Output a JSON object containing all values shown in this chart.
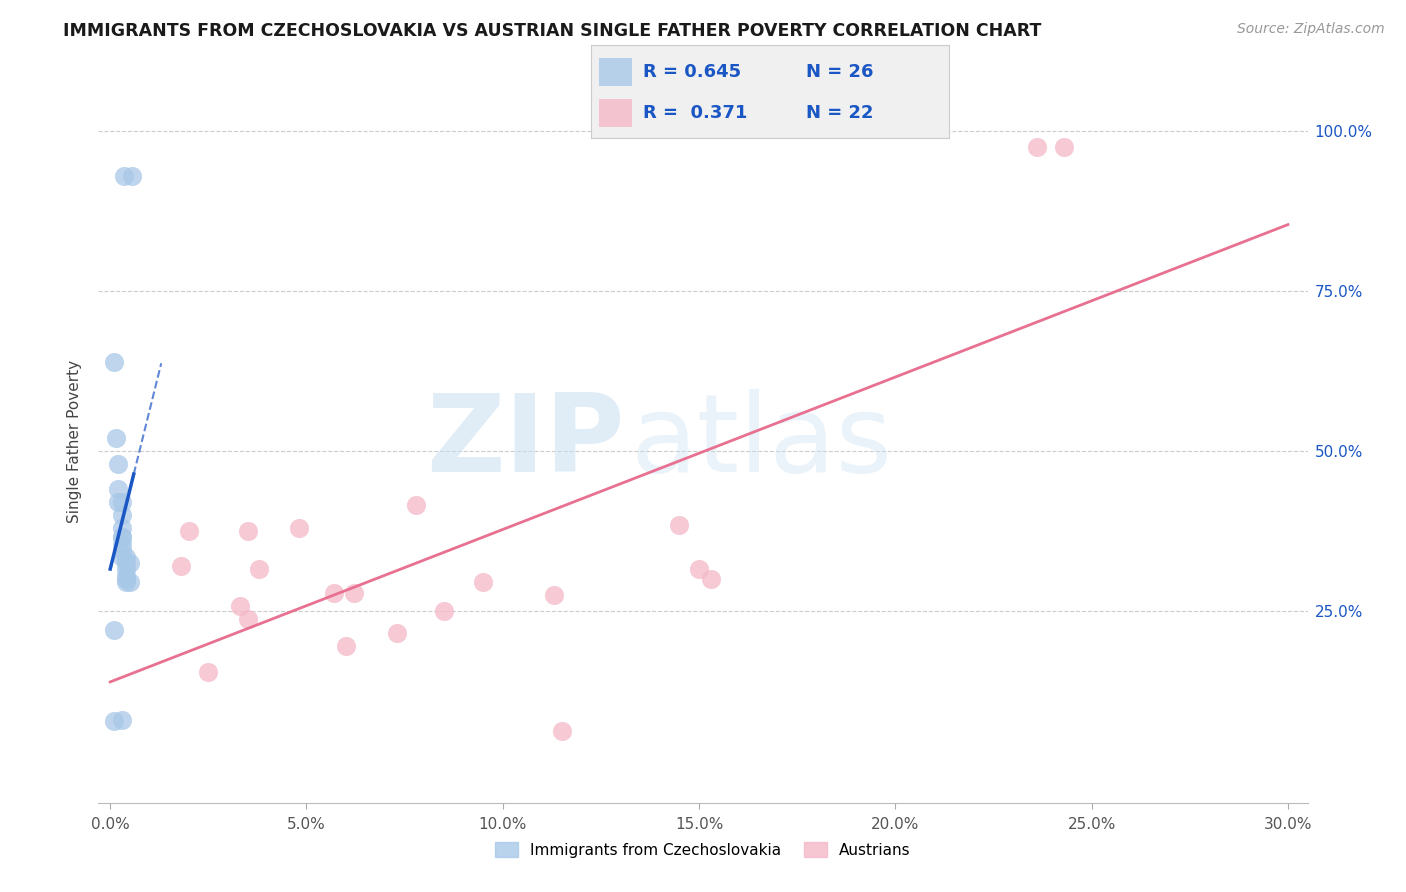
{
  "title": "IMMIGRANTS FROM CZECHOSLOVAKIA VS AUSTRIAN SINGLE FATHER POVERTY CORRELATION CHART",
  "source": "Source: ZipAtlas.com",
  "ylabel": "Single Father Poverty",
  "x_tick_labels": [
    "0.0%",
    "5.0%",
    "10.0%",
    "15.0%",
    "20.0%",
    "25.0%",
    "30.0%"
  ],
  "x_ticks": [
    0.0,
    0.05,
    0.1,
    0.15,
    0.2,
    0.25,
    0.3
  ],
  "y_tick_labels": [
    "25.0%",
    "50.0%",
    "75.0%",
    "100.0%"
  ],
  "y_ticks": [
    0.25,
    0.5,
    0.75,
    1.0
  ],
  "blue_color": "#a8c8e8",
  "pink_color": "#f4b8c8",
  "blue_line_color": "#1a56c4",
  "pink_line_color": "#e87090",
  "blue_scatter_x": [
    0.0035,
    0.0055,
    0.001,
    0.0015,
    0.002,
    0.002,
    0.002,
    0.003,
    0.003,
    0.003,
    0.003,
    0.003,
    0.003,
    0.003,
    0.003,
    0.004,
    0.004,
    0.004,
    0.004,
    0.004,
    0.004,
    0.005,
    0.005,
    0.001,
    0.003,
    0.001
  ],
  "blue_scatter_y": [
    0.93,
    0.93,
    0.64,
    0.52,
    0.48,
    0.44,
    0.42,
    0.42,
    0.4,
    0.38,
    0.365,
    0.365,
    0.355,
    0.345,
    0.335,
    0.335,
    0.325,
    0.315,
    0.305,
    0.295,
    0.3,
    0.295,
    0.325,
    0.22,
    0.08,
    0.078
  ],
  "pink_scatter_x": [
    0.025,
    0.06,
    0.113,
    0.095,
    0.145,
    0.236,
    0.02,
    0.035,
    0.078,
    0.048,
    0.15,
    0.038,
    0.153,
    0.057,
    0.085,
    0.243,
    0.018,
    0.062,
    0.033,
    0.035,
    0.073,
    0.115
  ],
  "pink_scatter_y": [
    0.155,
    0.195,
    0.275,
    0.295,
    0.385,
    0.975,
    0.375,
    0.375,
    0.415,
    0.38,
    0.315,
    0.315,
    0.3,
    0.278,
    0.25,
    0.975,
    0.32,
    0.278,
    0.258,
    0.238,
    0.215,
    0.063
  ]
}
